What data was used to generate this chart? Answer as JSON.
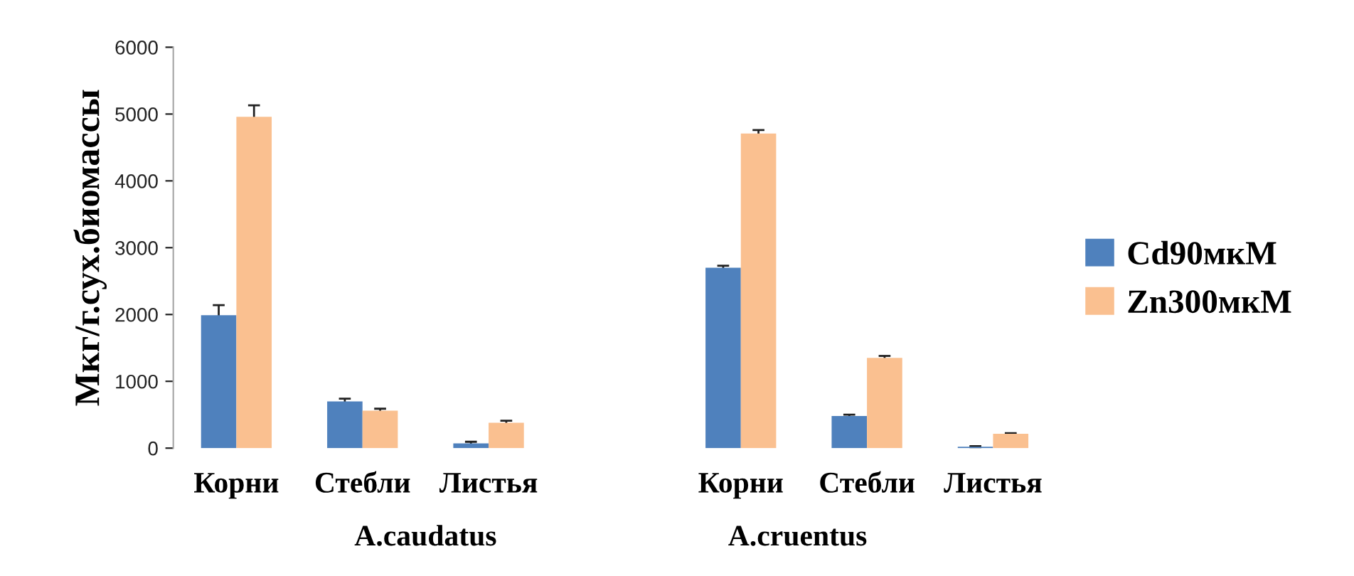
{
  "chart_data": {
    "type": "bar",
    "ylabel": "Мкг/г.сух.биомассы",
    "categories": [
      "Корни",
      "Стебли",
      "Листья",
      null,
      "Корни",
      "Стебли",
      "Листья"
    ],
    "series": [
      {
        "name": "Cd90мкМ",
        "color": "#4f81bd",
        "values": [
          1990,
          700,
          70,
          null,
          2700,
          480,
          20
        ],
        "errors": [
          150,
          40,
          25,
          null,
          30,
          20,
          10
        ]
      },
      {
        "name": "Zn300мкМ",
        "color": "#fac090",
        "values": [
          4960,
          560,
          380,
          null,
          4710,
          1350,
          215
        ],
        "errors": [
          170,
          30,
          30,
          null,
          50,
          30,
          10
        ]
      }
    ],
    "ylim": [
      0,
      6000
    ],
    "yticks": [
      0,
      1000,
      2000,
      3000,
      4000,
      5000,
      6000
    ],
    "grid": false,
    "legend": "right",
    "annotations": [
      "A.caudatus",
      "A.cruentus"
    ]
  }
}
